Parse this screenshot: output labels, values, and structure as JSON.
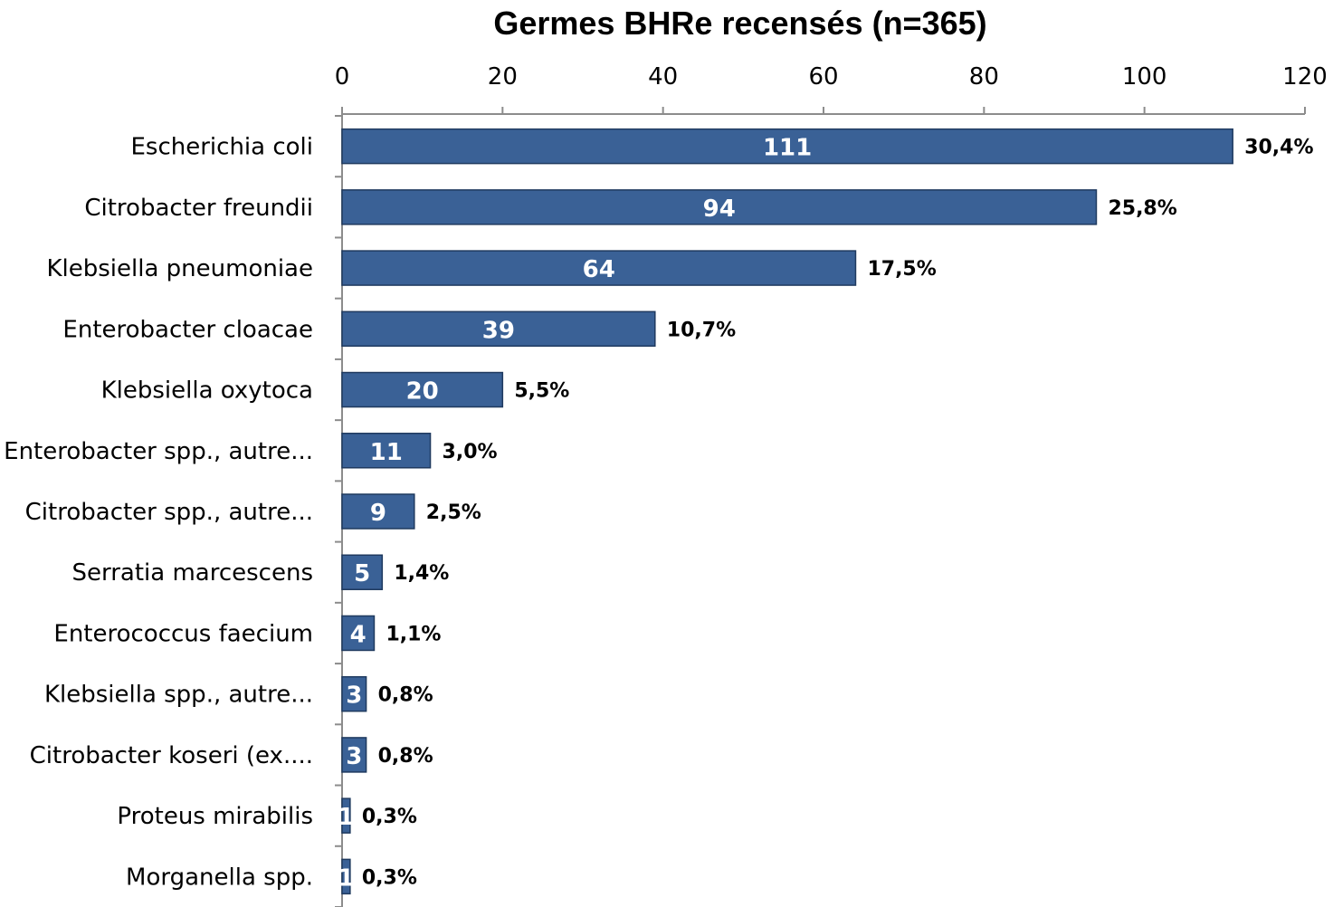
{
  "chart_data": {
    "type": "bar",
    "orientation": "horizontal",
    "title": "Germes BHRe recensés (n=365)",
    "xlabel": "",
    "ylabel": "",
    "xlim": [
      0,
      120
    ],
    "x_ticks": [
      "0",
      "20",
      "40",
      "60",
      "80",
      "100",
      "120"
    ],
    "x_axis_position": "top",
    "grid": false,
    "legend": "none",
    "bar_color": "#3A6196",
    "categories": [
      "Escherichia coli",
      "Citrobacter freundii",
      "Klebsiella pneumoniae",
      "Enterobacter cloacae",
      "Klebsiella oxytoca",
      "Enterobacter spp., autre...",
      "Citrobacter spp., autre...",
      "Serratia marcescens",
      "Enterococcus faecium",
      "Klebsiella spp., autre...",
      "Citrobacter koseri (ex....",
      "Proteus mirabilis",
      "Morganella spp."
    ],
    "values": [
      111,
      94,
      64,
      39,
      20,
      11,
      9,
      5,
      4,
      3,
      3,
      1,
      1
    ],
    "value_labels": [
      "111",
      "94",
      "64",
      "39",
      "20",
      "11",
      "9",
      "5",
      "4",
      "3",
      "3",
      "1",
      "1"
    ],
    "percent_labels": [
      "30,4%",
      "25,8%",
      "17,5%",
      "10,7%",
      "5,5%",
      "3,0%",
      "2,5%",
      "1,4%",
      "1,1%",
      "0,8%",
      "0,8%",
      "0,3%",
      "0,3%"
    ]
  }
}
